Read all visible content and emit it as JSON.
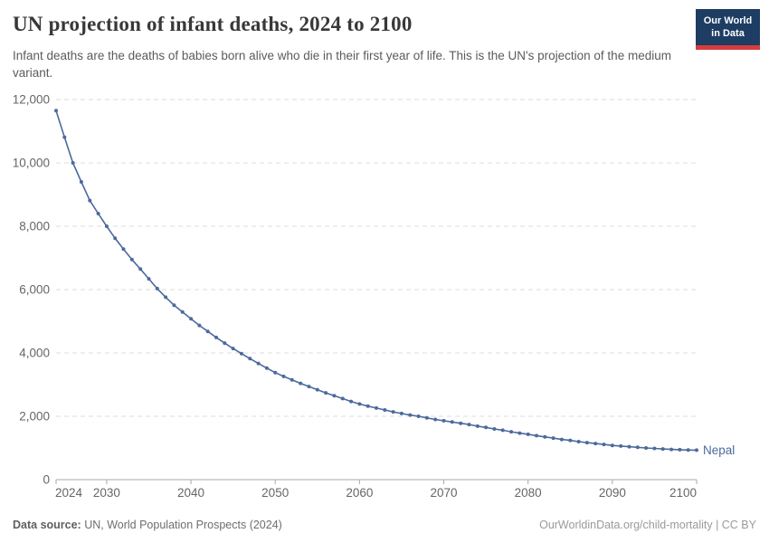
{
  "header": {
    "title": "UN projection of infant deaths, 2024 to 2100",
    "subtitle": "Infant deaths are the deaths of babies born alive who die in their first year of life. This is the UN's projection of the medium variant.",
    "logo": {
      "line1": "Our World",
      "line2": "in Data",
      "bg_color": "#1d3d63",
      "stripe_color": "#d73c3c"
    }
  },
  "chart_data": {
    "type": "line",
    "title": "UN projection of infant deaths, 2024 to 2100",
    "xlabel": "",
    "ylabel": "",
    "xlim": [
      2024,
      2100
    ],
    "ylim": [
      0,
      12000
    ],
    "x_ticks": [
      2024,
      2030,
      2040,
      2050,
      2060,
      2070,
      2080,
      2090,
      2100
    ],
    "y_ticks": [
      0,
      2000,
      4000,
      6000,
      8000,
      10000,
      12000
    ],
    "grid": true,
    "grid_color": "#dddddd",
    "axis_color": "#a8a8a8",
    "tick_label_color": "#666666",
    "legend_position": "end-of-line",
    "series": [
      {
        "name": "Nepal",
        "color": "#4C6A9C",
        "points": [
          [
            2024,
            11650
          ],
          [
            2025,
            10810
          ],
          [
            2026,
            10000
          ],
          [
            2027,
            9400
          ],
          [
            2028,
            8810
          ],
          [
            2029,
            8400
          ],
          [
            2030,
            8000
          ],
          [
            2031,
            7620
          ],
          [
            2032,
            7280
          ],
          [
            2033,
            6950
          ],
          [
            2034,
            6650
          ],
          [
            2035,
            6340
          ],
          [
            2036,
            6030
          ],
          [
            2037,
            5760
          ],
          [
            2038,
            5510
          ],
          [
            2039,
            5290
          ],
          [
            2040,
            5080
          ],
          [
            2041,
            4870
          ],
          [
            2042,
            4680
          ],
          [
            2043,
            4490
          ],
          [
            2044,
            4310
          ],
          [
            2045,
            4140
          ],
          [
            2046,
            3980
          ],
          [
            2047,
            3820
          ],
          [
            2048,
            3670
          ],
          [
            2049,
            3520
          ],
          [
            2050,
            3380
          ],
          [
            2051,
            3260
          ],
          [
            2052,
            3150
          ],
          [
            2053,
            3040
          ],
          [
            2054,
            2940
          ],
          [
            2055,
            2840
          ],
          [
            2056,
            2740
          ],
          [
            2057,
            2650
          ],
          [
            2058,
            2560
          ],
          [
            2059,
            2470
          ],
          [
            2060,
            2390
          ],
          [
            2061,
            2320
          ],
          [
            2062,
            2260
          ],
          [
            2063,
            2200
          ],
          [
            2064,
            2140
          ],
          [
            2065,
            2090
          ],
          [
            2066,
            2040
          ],
          [
            2067,
            2000
          ],
          [
            2068,
            1950
          ],
          [
            2069,
            1900
          ],
          [
            2070,
            1860
          ],
          [
            2071,
            1820
          ],
          [
            2072,
            1780
          ],
          [
            2073,
            1740
          ],
          [
            2074,
            1690
          ],
          [
            2075,
            1650
          ],
          [
            2076,
            1600
          ],
          [
            2077,
            1560
          ],
          [
            2078,
            1510
          ],
          [
            2079,
            1470
          ],
          [
            2080,
            1430
          ],
          [
            2081,
            1390
          ],
          [
            2082,
            1350
          ],
          [
            2083,
            1310
          ],
          [
            2084,
            1270
          ],
          [
            2085,
            1240
          ],
          [
            2086,
            1200
          ],
          [
            2087,
            1170
          ],
          [
            2088,
            1140
          ],
          [
            2089,
            1110
          ],
          [
            2090,
            1080
          ],
          [
            2091,
            1060
          ],
          [
            2092,
            1040
          ],
          [
            2093,
            1020
          ],
          [
            2094,
            1000
          ],
          [
            2095,
            985
          ],
          [
            2096,
            970
          ],
          [
            2097,
            955
          ],
          [
            2098,
            945
          ],
          [
            2099,
            935
          ],
          [
            2100,
            930
          ]
        ]
      }
    ]
  },
  "footer": {
    "source_label": "Data source:",
    "source_text": " UN, World Population Prospects (2024)",
    "credit": "OurWorldinData.org/child-mortality | CC BY"
  }
}
